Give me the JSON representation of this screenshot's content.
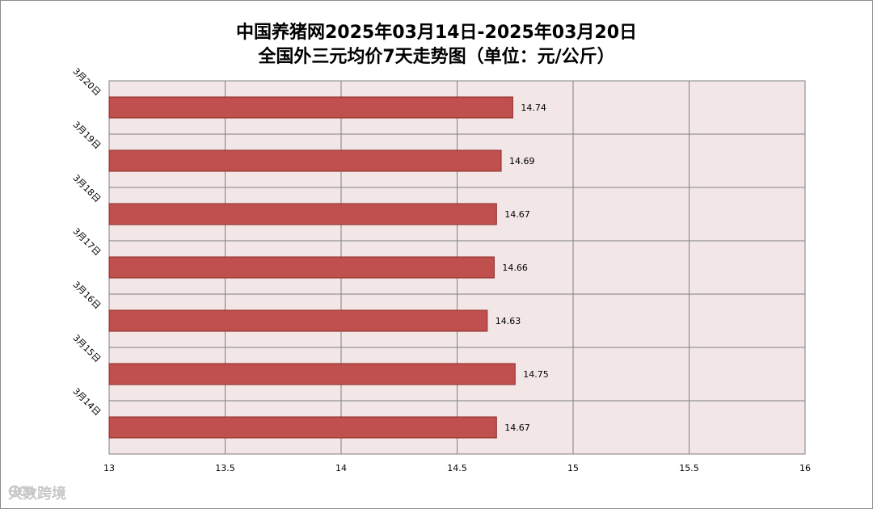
{
  "titles": {
    "line1": "中国养猪网2025年03月14日-2025年03月20日",
    "line2": "全国外三元均价7天走势图（单位：元/公斤）"
  },
  "chart_data": {
    "type": "bar",
    "orientation": "horizontal",
    "title": "中国养猪网2025年03月14日-2025年03月20日 全国外三元均价7天走势图（单位：元/公斤）",
    "categories": [
      "3月20日",
      "3月19日",
      "3月18日",
      "3月17日",
      "3月16日",
      "3月15日",
      "3月14日"
    ],
    "values": [
      14.74,
      14.69,
      14.67,
      14.66,
      14.63,
      14.75,
      14.67
    ],
    "xlim": [
      13,
      16
    ],
    "xticks": [
      "13",
      "13.5",
      "14",
      "14.5",
      "15",
      "15.5",
      "16"
    ],
    "xtick_values": [
      13,
      13.5,
      14,
      14.5,
      15,
      15.5,
      16
    ],
    "data_labels": [
      "14.74",
      "14.69",
      "14.67",
      "14.66",
      "14.63",
      "14.75",
      "14.67"
    ],
    "grid": true,
    "bar_color": "#c0504d",
    "bar_border": "#8c2a28",
    "plot_background": "#f2e6e6",
    "grid_color": "#808080"
  },
  "watermark": {
    "text": "大数跨境",
    "icon": "logo-icon"
  }
}
